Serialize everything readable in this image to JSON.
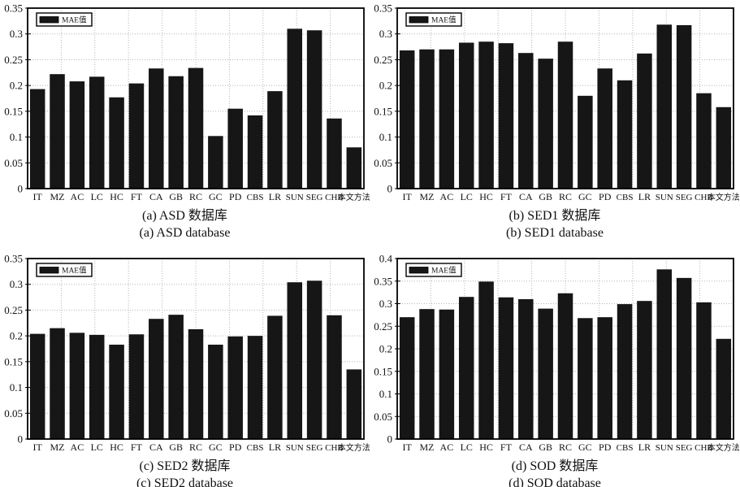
{
  "page": {
    "background": "#ffffff",
    "text_color": "#111111"
  },
  "style": {
    "bar_color": "#161616",
    "grid_color": "#b5b5b5",
    "axis_color": "#000000",
    "legend_bg": "#ffffff"
  },
  "chart_data": [
    {
      "id": "a",
      "type": "bar",
      "legend": "MAE值",
      "caption_cn": "(a) ASD 数据库",
      "caption_en": "(a) ASD database",
      "categories": [
        "IT",
        "MZ",
        "AC",
        "LC",
        "HC",
        "FT",
        "CA",
        "GB",
        "RC",
        "GC",
        "PD",
        "CBS",
        "LR",
        "SUN",
        "SEG",
        "CHB",
        "本文方法"
      ],
      "values": [
        0.193,
        0.222,
        0.208,
        0.217,
        0.177,
        0.204,
        0.233,
        0.218,
        0.234,
        0.102,
        0.155,
        0.142,
        0.189,
        0.31,
        0.307,
        0.136,
        0.08
      ],
      "ylabel": "",
      "xlabel": "",
      "ylim": [
        0,
        0.35
      ],
      "ytick_step": 0.05,
      "grid": true,
      "legend_position": "top-left"
    },
    {
      "id": "b",
      "type": "bar",
      "legend": "MAE值",
      "caption_cn": "(b) SED1 数据库",
      "caption_en": "(b) SED1 database",
      "categories": [
        "IT",
        "MZ",
        "AC",
        "LC",
        "HC",
        "FT",
        "CA",
        "GB",
        "RC",
        "GC",
        "PD",
        "CBS",
        "LR",
        "SUN",
        "SEG",
        "CHB",
        "本文方法"
      ],
      "values": [
        0.268,
        0.27,
        0.27,
        0.283,
        0.285,
        0.282,
        0.263,
        0.252,
        0.285,
        0.18,
        0.233,
        0.21,
        0.262,
        0.318,
        0.317,
        0.185,
        0.158
      ],
      "ylabel": "",
      "xlabel": "",
      "ylim": [
        0,
        0.35
      ],
      "ytick_step": 0.05,
      "grid": true,
      "legend_position": "top-left"
    },
    {
      "id": "c",
      "type": "bar",
      "legend": "MAE值",
      "caption_cn": "(c) SED2 数据库",
      "caption_en": "(c) SED2 database",
      "categories": [
        "IT",
        "MZ",
        "AC",
        "LC",
        "HC",
        "FT",
        "CA",
        "GB",
        "RC",
        "GC",
        "PD",
        "CBS",
        "LR",
        "SUN",
        "SEG",
        "CHB",
        "本文方法"
      ],
      "values": [
        0.204,
        0.215,
        0.206,
        0.202,
        0.183,
        0.203,
        0.233,
        0.241,
        0.213,
        0.183,
        0.199,
        0.2,
        0.239,
        0.304,
        0.307,
        0.24,
        0.135
      ],
      "ylabel": "",
      "xlabel": "",
      "ylim": [
        0,
        0.35
      ],
      "ytick_step": 0.05,
      "grid": true,
      "legend_position": "top-left"
    },
    {
      "id": "d",
      "type": "bar",
      "legend": "MAE值",
      "caption_cn": "(d) SOD 数据库",
      "caption_en": "(d) SOD database",
      "categories": [
        "IT",
        "MZ",
        "AC",
        "LC",
        "HC",
        "FT",
        "CA",
        "GB",
        "RC",
        "GC",
        "PD",
        "CBS",
        "LR",
        "SUN",
        "SEG",
        "CHB",
        "本文方法"
      ],
      "values": [
        0.27,
        0.288,
        0.287,
        0.315,
        0.349,
        0.314,
        0.31,
        0.289,
        0.323,
        0.268,
        0.27,
        0.299,
        0.306,
        0.376,
        0.357,
        0.303,
        0.222
      ],
      "ylabel": "",
      "xlabel": "",
      "ylim": [
        0,
        0.4
      ],
      "ytick_step": 0.05,
      "grid": true,
      "legend_position": "top-left"
    }
  ]
}
